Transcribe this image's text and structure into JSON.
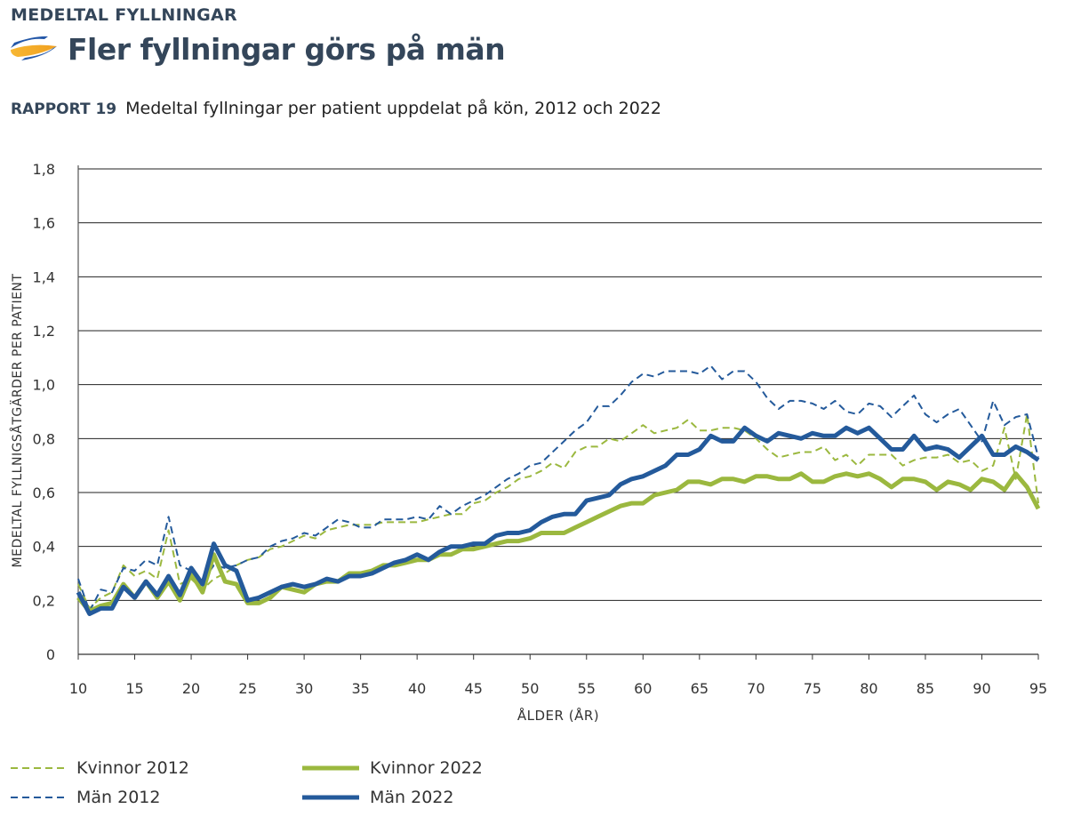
{
  "header": {
    "kicker": "MEDELTAL FYLLNINGAR",
    "title": "Fler fyllningar görs på män",
    "report_label": "RAPPORT 19",
    "report_text": "Medeltal fyllningar per patient uppdelat på kön, 2012 och 2022"
  },
  "chart_data": {
    "type": "line",
    "title": "",
    "xlabel": "ÅLDER (ÅR)",
    "ylabel": "MEDELTAL FYLLNIGSÅTGÄRDER PER PATIENT",
    "xlim": [
      10,
      95
    ],
    "ylim": [
      0,
      1.8
    ],
    "x_ticks": [
      10,
      15,
      20,
      25,
      30,
      35,
      40,
      45,
      50,
      55,
      60,
      65,
      70,
      75,
      80,
      85,
      90,
      95
    ],
    "y_ticks": [
      "0",
      "0,2",
      "0,4",
      "0,6",
      "0,8",
      "1,0",
      "1,2",
      "1,4",
      "1,6",
      "1,8"
    ],
    "grid": "horizontal",
    "legend_position": "bottom",
    "x_start": 10,
    "series": [
      {
        "name": "Kvinnor 2012",
        "color": "#9bb83f",
        "style": "dashed",
        "values": [
          0.26,
          0.17,
          0.21,
          0.23,
          0.33,
          0.29,
          0.31,
          0.28,
          0.46,
          0.26,
          0.28,
          0.24,
          0.28,
          0.3,
          0.33,
          0.35,
          0.36,
          0.39,
          0.4,
          0.42,
          0.44,
          0.43,
          0.46,
          0.47,
          0.48,
          0.48,
          0.48,
          0.49,
          0.49,
          0.49,
          0.49,
          0.5,
          0.51,
          0.52,
          0.52,
          0.56,
          0.57,
          0.6,
          0.62,
          0.65,
          0.66,
          0.68,
          0.71,
          0.69,
          0.75,
          0.77,
          0.77,
          0.8,
          0.79,
          0.82,
          0.85,
          0.82,
          0.83,
          0.84,
          0.87,
          0.83,
          0.83,
          0.84,
          0.84,
          0.83,
          0.8,
          0.76,
          0.73,
          0.74,
          0.75,
          0.75,
          0.77,
          0.72,
          0.74,
          0.7,
          0.74,
          0.74,
          0.74,
          0.7,
          0.72,
          0.73,
          0.73,
          0.74,
          0.71,
          0.72,
          0.68,
          0.7,
          0.84,
          0.65,
          0.89,
          0.56
        ]
      },
      {
        "name": "Män 2012",
        "color": "#245a9b",
        "style": "dashed",
        "values": [
          0.28,
          0.16,
          0.24,
          0.23,
          0.32,
          0.31,
          0.35,
          0.33,
          0.51,
          0.33,
          0.31,
          0.27,
          0.33,
          0.32,
          0.33,
          0.35,
          0.36,
          0.4,
          0.42,
          0.43,
          0.45,
          0.44,
          0.47,
          0.5,
          0.49,
          0.47,
          0.47,
          0.5,
          0.5,
          0.5,
          0.51,
          0.5,
          0.55,
          0.52,
          0.55,
          0.57,
          0.59,
          0.62,
          0.65,
          0.67,
          0.7,
          0.71,
          0.75,
          0.79,
          0.83,
          0.86,
          0.92,
          0.92,
          0.96,
          1.01,
          1.04,
          1.03,
          1.05,
          1.05,
          1.05,
          1.04,
          1.07,
          1.02,
          1.05,
          1.05,
          1.01,
          0.95,
          0.91,
          0.94,
          0.94,
          0.93,
          0.91,
          0.94,
          0.9,
          0.89,
          0.93,
          0.92,
          0.88,
          0.92,
          0.96,
          0.89,
          0.86,
          0.89,
          0.91,
          0.85,
          0.79,
          0.94,
          0.85,
          0.88,
          0.89,
          0.73
        ]
      },
      {
        "name": "Kvinnor 2022",
        "color": "#9bb83f",
        "style": "solid",
        "values": [
          0.21,
          0.16,
          0.18,
          0.19,
          0.26,
          0.21,
          0.27,
          0.21,
          0.27,
          0.2,
          0.3,
          0.23,
          0.37,
          0.27,
          0.26,
          0.19,
          0.19,
          0.21,
          0.25,
          0.24,
          0.23,
          0.26,
          0.27,
          0.27,
          0.3,
          0.3,
          0.31,
          0.33,
          0.33,
          0.34,
          0.35,
          0.35,
          0.37,
          0.37,
          0.39,
          0.39,
          0.4,
          0.41,
          0.42,
          0.42,
          0.43,
          0.45,
          0.45,
          0.45,
          0.47,
          0.49,
          0.51,
          0.53,
          0.55,
          0.56,
          0.56,
          0.59,
          0.6,
          0.61,
          0.64,
          0.64,
          0.63,
          0.65,
          0.65,
          0.64,
          0.66,
          0.66,
          0.65,
          0.65,
          0.67,
          0.64,
          0.64,
          0.66,
          0.67,
          0.66,
          0.67,
          0.65,
          0.62,
          0.65,
          0.65,
          0.64,
          0.61,
          0.64,
          0.63,
          0.61,
          0.65,
          0.64,
          0.61,
          0.67,
          0.62,
          0.54
        ]
      },
      {
        "name": "Män 2022",
        "color": "#245a9b",
        "style": "solid",
        "values": [
          0.23,
          0.15,
          0.17,
          0.17,
          0.25,
          0.21,
          0.27,
          0.22,
          0.29,
          0.22,
          0.32,
          0.26,
          0.41,
          0.33,
          0.31,
          0.2,
          0.21,
          0.23,
          0.25,
          0.26,
          0.25,
          0.26,
          0.28,
          0.27,
          0.29,
          0.29,
          0.3,
          0.32,
          0.34,
          0.35,
          0.37,
          0.35,
          0.38,
          0.4,
          0.4,
          0.41,
          0.41,
          0.44,
          0.45,
          0.45,
          0.46,
          0.49,
          0.51,
          0.52,
          0.52,
          0.57,
          0.58,
          0.59,
          0.63,
          0.65,
          0.66,
          0.68,
          0.7,
          0.74,
          0.74,
          0.76,
          0.81,
          0.79,
          0.79,
          0.84,
          0.81,
          0.79,
          0.82,
          0.81,
          0.8,
          0.82,
          0.81,
          0.81,
          0.84,
          0.82,
          0.84,
          0.8,
          0.76,
          0.76,
          0.81,
          0.76,
          0.77,
          0.76,
          0.73,
          0.77,
          0.81,
          0.74,
          0.74,
          0.77,
          0.75,
          0.72
        ]
      }
    ]
  }
}
